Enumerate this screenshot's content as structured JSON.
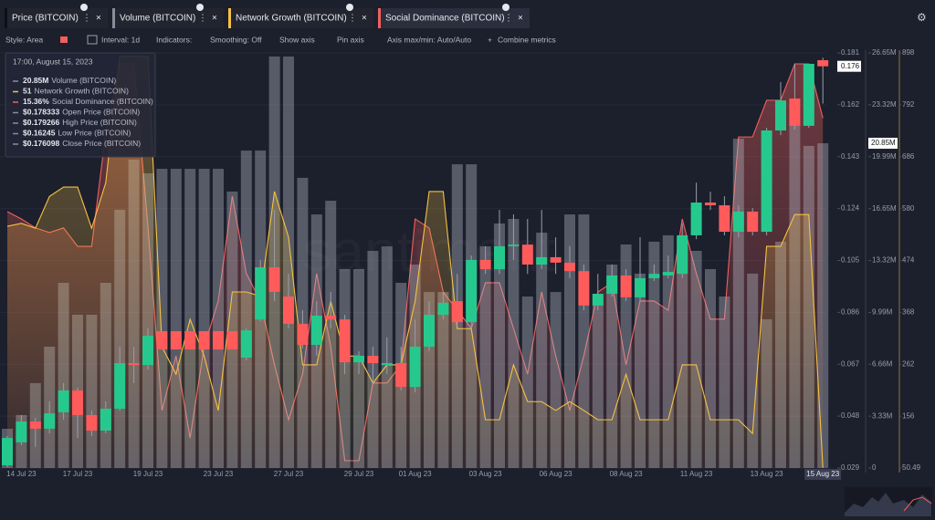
{
  "tabs_note_free": null,
  "toolbar": [
    "Style: Area",
    "Interval: 1d",
    "Indicators:",
    "Smoothing: Off",
    "Show axis",
    "Pin axis",
    "Axis max/min: Auto/Auto",
    "Combine metrics"
  ],
  "watermark": "santiment",
  "tooltip": {
    "title": "17:00, August 15, 2023",
    "rows": [
      {
        "value": "20.85M",
        "name": "Volume (BITCOIN)"
      },
      {
        "value": "51",
        "name": "Network Growth (BITCOIN)"
      },
      {
        "value": "15.36%",
        "name": "Social Dominance (BITCOIN)"
      },
      {
        "value": "$0.178333",
        "name": "Open Price (BITCOIN)"
      },
      {
        "value": "$0.179266",
        "name": "High Price (BITCOIN)"
      },
      {
        "value": "$0.16245",
        "name": "Low Price (BITCOIN)"
      },
      {
        "value": "$0.176098",
        "name": "Close Price (BITCOIN)"
      }
    ]
  },
  "chart_data": {
    "type": "combo",
    "categories": [
      null,
      "14 Jul 23",
      null,
      null,
      null,
      "17 Jul 23",
      null,
      null,
      null,
      null,
      "19 Jul 23",
      null,
      null,
      null,
      null,
      "23 Jul 23",
      null,
      null,
      null,
      null,
      "27 Jul 23",
      null,
      null,
      null,
      null,
      "29 Jul 23",
      null,
      null,
      null,
      "01 Aug 23",
      null,
      null,
      null,
      null,
      "03 Aug 23",
      null,
      null,
      null,
      null,
      "06 Aug 23",
      null,
      null,
      null,
      null,
      "08 Aug 23",
      null,
      null,
      null,
      null,
      "11 Aug 23",
      null,
      null,
      null,
      null,
      "13 Aug 23",
      null,
      null,
      null,
      "15 Aug 23"
    ],
    "ylim": [
      0.029,
      0.181
    ],
    "yticks": [
      0.029,
      0.048,
      0.067,
      0.086,
      0.105,
      0.124,
      0.143,
      0.162,
      0.181
    ],
    "y2lim": [
      0,
      26650000
    ],
    "y2ticks": [
      0,
      {
        "value": 3330000,
        "label": "3.33M"
      },
      {
        "value": 6660000,
        "label": "6.66M"
      },
      {
        "value": 9990000,
        "label": "9.99M"
      },
      {
        "value": 13320000,
        "label": "13.32M"
      },
      {
        "value": 16650000,
        "label": "16.65M"
      },
      {
        "value": 19990000,
        "label": "19.99M"
      },
      {
        "value": 23320000,
        "label": "23.32M"
      },
      {
        "value": 26650000,
        "label": "26.65M"
      }
    ],
    "y3lim": [
      50.49,
      898
    ],
    "y3ticks": [
      50.49,
      156,
      262,
      368,
      474,
      580,
      686,
      792,
      898
    ],
    "series": [
      {
        "name": "Price (BITCOIN)",
        "type": "candlestick",
        "up_color": "#26c98d",
        "down_color": "#ff5b5b",
        "tab_color": "#0d0f16",
        "last_label": "0.176",
        "open": [
          0.03,
          0.0384,
          0.046,
          0.0434,
          0.0494,
          0.0574,
          0.0484,
          0.0427,
          0.0507,
          0.0674,
          0.0667,
          0.0791,
          0.0791,
          0.0791,
          0.0791,
          0.0791,
          0.0791,
          0.0694,
          0.0834,
          0.1025,
          0.0918,
          0.0818,
          0.0741,
          0.0848,
          0.0834,
          0.0677,
          0.0701,
          0.0667,
          0.0674,
          0.0587,
          0.0734,
          0.0851,
          0.0901,
          0.0824,
          0.1052,
          0.1018,
          0.1102,
          0.1108,
          0.1035,
          0.1062,
          0.1042,
          0.1011,
          0.0885,
          0.0928,
          0.0995,
          0.0915,
          0.0985,
          0.0995,
          0.1001,
          0.1142,
          0.1262,
          0.1252,
          0.1155,
          0.1229,
          0.1155,
          0.1526,
          0.1643,
          0.1543,
          0.178333
        ],
        "high": [
          0.0407,
          0.0484,
          0.0474,
          0.0534,
          0.0601,
          0.0584,
          0.05,
          0.0534,
          0.0734,
          0.0734,
          0.0801,
          0.0791,
          0.0791,
          0.0791,
          0.0791,
          0.0791,
          0.0791,
          0.0801,
          0.1052,
          0.1235,
          0.1001,
          0.0868,
          0.0901,
          0.0935,
          0.0851,
          0.0718,
          0.0734,
          0.0768,
          0.0734,
          0.0834,
          0.0901,
          0.0935,
          0.1001,
          0.1068,
          0.1102,
          0.1235,
          0.1219,
          0.1202,
          0.1235,
          0.1135,
          0.1102,
          0.1035,
          0.1001,
          0.1035,
          0.1018,
          0.1135,
          0.1035,
          0.1068,
          0.1185,
          0.1335,
          0.1302,
          0.1285,
          0.1252,
          0.1242,
          0.1536,
          0.1703,
          0.177,
          0.177,
          0.179266
        ],
        "low": [
          0.0293,
          0.0374,
          0.0367,
          0.0417,
          0.0467,
          0.04,
          0.0407,
          0.0417,
          0.05,
          0.0601,
          0.0651,
          0.0724,
          0.0724,
          0.0724,
          0.0724,
          0.0724,
          0.0724,
          0.0684,
          0.0828,
          0.0901,
          0.0801,
          0.0728,
          0.0701,
          0.0801,
          0.0634,
          0.0634,
          0.0601,
          0.0634,
          0.0574,
          0.0567,
          0.0718,
          0.0834,
          0.0808,
          0.0801,
          0.1001,
          0.1001,
          0.1052,
          0.1001,
          0.1018,
          0.1001,
          0.0985,
          0.0868,
          0.0868,
          0.0918,
          0.0901,
          0.0901,
          0.0975,
          0.0985,
          0.0985,
          0.1128,
          0.1235,
          0.1142,
          0.1135,
          0.1142,
          0.1142,
          0.1509,
          0.1529,
          0.1536,
          0.16245
        ],
        "close": [
          0.04,
          0.046,
          0.0434,
          0.049,
          0.0574,
          0.0484,
          0.0427,
          0.0507,
          0.0674,
          0.0667,
          0.0774,
          0.0724,
          0.0724,
          0.0724,
          0.0724,
          0.0724,
          0.0724,
          0.0794,
          0.1025,
          0.0935,
          0.0818,
          0.0741,
          0.0848,
          0.0834,
          0.0677,
          0.0701,
          0.0674,
          0.0674,
          0.0587,
          0.0734,
          0.0851,
          0.0895,
          0.0824,
          0.1052,
          0.1018,
          0.1102,
          0.1108,
          0.1035,
          0.1062,
          0.1042,
          0.1011,
          0.0885,
          0.0928,
          0.0995,
          0.0915,
          0.0985,
          0.1001,
          0.1008,
          0.1142,
          0.1262,
          0.1252,
          0.1155,
          0.1229,
          0.1155,
          0.1526,
          0.1636,
          0.1543,
          0.177,
          0.176098
        ]
      },
      {
        "name": "Volume (BITCOIN)",
        "type": "bar",
        "axis": "y2",
        "color": "#b9bcc8",
        "tab_color": "#8a8d99",
        "last_label": "20.85M",
        "values": [
          2520000,
          3400000,
          5450000,
          7790000,
          11890000,
          9840000,
          9840000,
          11890000,
          16580000,
          19800000,
          18920000,
          19210000,
          19210000,
          19210000,
          19210000,
          19210000,
          17750000,
          20380000,
          20380000,
          26420000,
          26420000,
          18630000,
          16280000,
          17160000,
          12770000,
          12770000,
          13940000,
          14230000,
          11890000,
          13060000,
          11300000,
          11300000,
          19500000,
          19500000,
          14230000,
          15700000,
          15990000,
          11010000,
          15110000,
          11300000,
          16280000,
          16280000,
          10720000,
          13060000,
          14350000,
          12480000,
          14530000,
          14940000,
          14530000,
          13940000,
          12770000,
          11010000,
          21140000,
          12480000,
          9550000,
          14530000,
          22140000,
          20680000,
          20850000
        ]
      },
      {
        "name": "Network Growth (BITCOIN)",
        "type": "area",
        "axis": "y3",
        "color": "#f5c242",
        "tab_color": "#f5c242",
        "values": [
          544,
          550,
          540,
          605,
          624,
          624,
          540,
          633,
          891,
          891,
          891,
          298,
          242,
          354,
          279,
          168,
          410,
          410,
          401,
          615,
          522,
          261,
          261,
          391,
          279,
          279,
          224,
          261,
          261,
          391,
          615,
          615,
          335,
          335,
          149,
          149,
          261,
          186,
          186,
          168,
          186,
          168,
          149,
          149,
          242,
          149,
          149,
          149,
          261,
          261,
          149,
          149,
          149,
          121,
          503,
          503,
          568,
          568,
          51
        ]
      },
      {
        "name": "Social Dominance (BITCOIN)",
        "type": "area",
        "color": "#f0605d",
        "tab_color": "#f0605d",
        "values": [
          12.53,
          12.31,
          12.04,
          11.9,
          12.04,
          11.48,
          11.48,
          14.93,
          17.0,
          17.0,
          12.09,
          6.52,
          8.17,
          5.69,
          8.45,
          9.83,
          13.0,
          10.66,
          9.83,
          7.9,
          6.24,
          7.62,
          10.66,
          8.45,
          5.0,
          5.0,
          7.35,
          7.35,
          7.9,
          12.31,
          12.04,
          10.1,
          9.55,
          9.0,
          10.38,
          10.38,
          9.0,
          7.62,
          10.1,
          8.17,
          6.52,
          8.17,
          10.1,
          10.38,
          7.9,
          9.83,
          9.83,
          9.55,
          12.31,
          10.66,
          9.28,
          9.28,
          14.79,
          14.79,
          15.9,
          15.9,
          17.0,
          17.0,
          15.36
        ]
      }
    ]
  }
}
